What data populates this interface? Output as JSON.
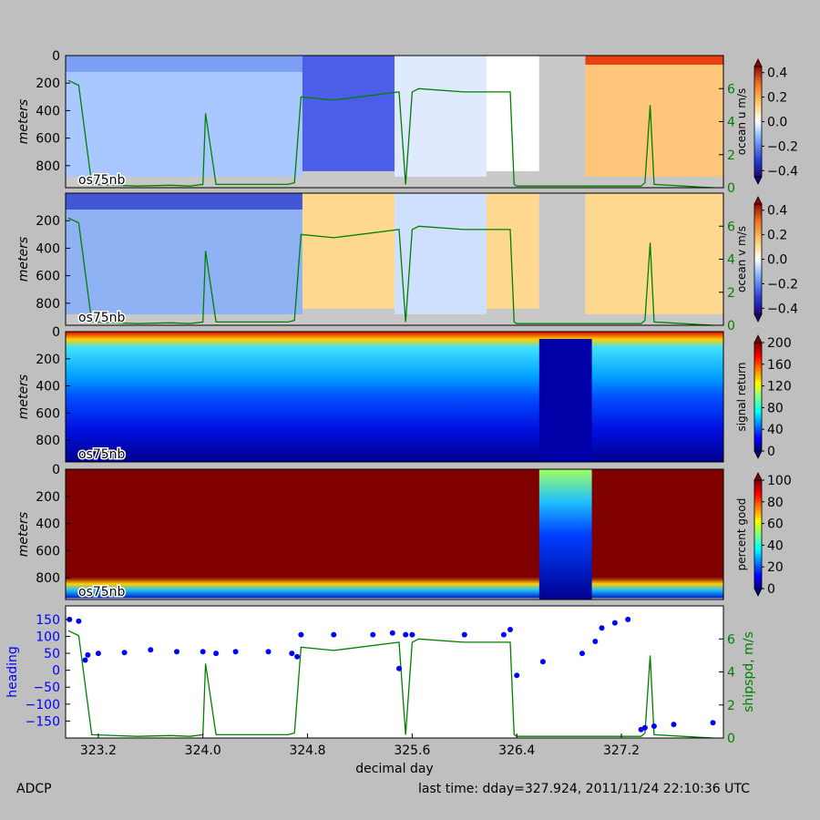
{
  "chart_data": [
    {
      "type": "heatmap",
      "panel": "ocean-u",
      "ylabel": "meters",
      "y_ticks": [
        0,
        200,
        400,
        600,
        800
      ],
      "ylim": [
        0,
        960
      ],
      "instrument_label": "os75nb",
      "colorbar": {
        "label": "ocean u m/s",
        "ticks": [
          -0.4,
          -0.2,
          0.0,
          0.2,
          0.4
        ],
        "colormap": "blue-white-red",
        "range": [
          -0.45,
          0.45
        ]
      },
      "right_axis": {
        "ticks": [
          0,
          2,
          4,
          6
        ],
        "range": [
          0,
          8
        ]
      }
    },
    {
      "type": "heatmap",
      "panel": "ocean-v",
      "ylabel": "meters",
      "y_ticks": [
        200,
        400,
        600,
        800
      ],
      "ylim": [
        0,
        960
      ],
      "instrument_label": "os75nb",
      "colorbar": {
        "label": "ocean v m/s",
        "ticks": [
          -0.4,
          -0.2,
          0.0,
          0.2,
          0.4
        ],
        "colormap": "blue-white-red",
        "range": [
          -0.45,
          0.45
        ]
      },
      "right_axis": {
        "ticks": [
          0,
          2,
          4,
          6
        ],
        "range": [
          0,
          8
        ]
      }
    },
    {
      "type": "heatmap",
      "panel": "signal-return",
      "ylabel": "meters",
      "y_ticks": [
        0,
        200,
        400,
        600,
        800
      ],
      "ylim": [
        0,
        960
      ],
      "instrument_label": "os75nb",
      "colorbar": {
        "label": "signal return",
        "ticks": [
          0,
          40,
          80,
          120,
          160,
          200
        ],
        "colormap": "jet",
        "range": [
          0,
          200
        ]
      }
    },
    {
      "type": "heatmap",
      "panel": "percent-good",
      "ylabel": "meters",
      "y_ticks": [
        0,
        200,
        400,
        600,
        800
      ],
      "ylim": [
        0,
        960
      ],
      "instrument_label": "os75nb",
      "colorbar": {
        "label": "percent good",
        "ticks": [
          0,
          20,
          40,
          60,
          80,
          100
        ],
        "colormap": "jet",
        "range": [
          0,
          100
        ]
      }
    },
    {
      "type": "scatter",
      "panel": "heading-shipspd",
      "xlabel": "decimal day",
      "x_ticks": [
        "323.2",
        "324.0",
        "324.8",
        "325.6",
        "326.4",
        "327.2"
      ],
      "xlim": [
        322.95,
        327.98
      ],
      "left_axis": {
        "label": "heading",
        "ticks": [
          "150",
          "100",
          "50",
          "0",
          "−50",
          "−100",
          "−150"
        ],
        "range": [
          -200,
          190
        ],
        "color": "#0000ff"
      },
      "right_axis": {
        "label": "shipspd, m/s",
        "ticks": [
          "0",
          "2",
          "4",
          "6"
        ],
        "range": [
          0,
          8
        ],
        "color": "#008000"
      },
      "series": [
        {
          "kind": "heading",
          "x": [
            322.98,
            323.05,
            323.1,
            323.12,
            323.2,
            323.4,
            323.6,
            323.8,
            324.0,
            324.1,
            324.25,
            324.5,
            324.68,
            324.72,
            324.75,
            325.0,
            325.3,
            325.45,
            325.5,
            325.55,
            325.6,
            326.0,
            326.3,
            326.35,
            326.4,
            326.6,
            326.9,
            327.0,
            327.05,
            327.15,
            327.25,
            327.35,
            327.38,
            327.45,
            327.6,
            327.9
          ],
          "y": [
            150,
            145,
            30,
            45,
            50,
            52,
            60,
            55,
            55,
            50,
            55,
            55,
            50,
            40,
            105,
            105,
            105,
            110,
            5,
            105,
            105,
            105,
            105,
            120,
            -15,
            25,
            50,
            85,
            125,
            140,
            150,
            -175,
            -170,
            -165,
            -160,
            -155
          ]
        },
        {
          "kind": "shipspd",
          "x": [
            322.97,
            323.05,
            323.15,
            323.5,
            323.75,
            323.9,
            324.0,
            324.02,
            324.1,
            324.25,
            324.65,
            324.7,
            324.75,
            325.0,
            325.5,
            325.55,
            325.6,
            325.65,
            326.0,
            326.35,
            326.38,
            326.4,
            327.0,
            327.35,
            327.38,
            327.42,
            327.45,
            327.9
          ],
          "y": [
            6.5,
            6.2,
            0.2,
            0.1,
            0.15,
            0.1,
            0.2,
            4.5,
            0.2,
            0.2,
            0.2,
            0.3,
            5.5,
            5.3,
            5.8,
            0.2,
            5.8,
            6.0,
            5.8,
            5.8,
            0.2,
            0.1,
            0.1,
            0.1,
            0.3,
            5.0,
            0.2,
            0.0
          ]
        }
      ]
    }
  ],
  "footer": {
    "left": "ADCP",
    "right": "last time: dday=327.924,  2011/11/24 22:10:36 UTC"
  }
}
